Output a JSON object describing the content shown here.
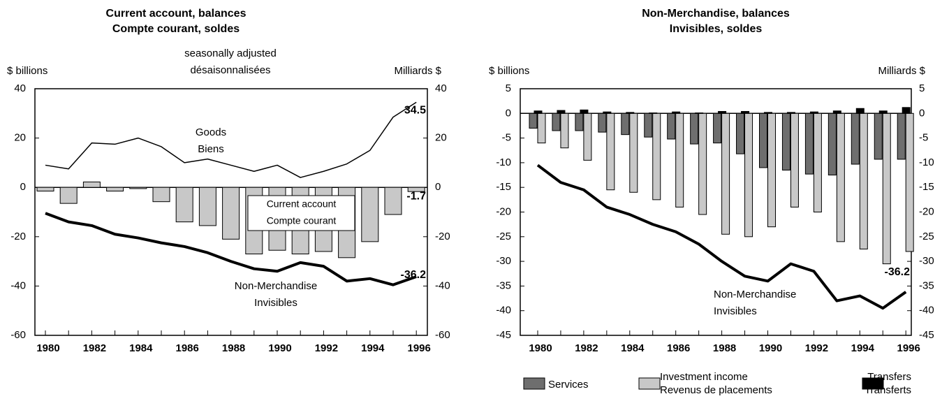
{
  "chart_data": [
    {
      "type": "combo",
      "title": [
        "Current account, balances",
        "Compte courant, soldes"
      ],
      "subtitle": [
        "seasonally adjusted",
        "désaisonnalisées"
      ],
      "y_label_left": "$ billions",
      "y_label_right": "Milliards $",
      "categories": [
        "1980",
        null,
        "1982",
        null,
        "1984",
        null,
        "1986",
        null,
        "1988",
        null,
        "1990",
        null,
        "1992",
        null,
        "1994",
        null,
        "1996"
      ],
      "ylim": [
        -60,
        40
      ],
      "yticks": [
        -60,
        -40,
        -20,
        0,
        20,
        40
      ],
      "series": [
        {
          "name": [
            "Current account",
            "Compte courant"
          ],
          "type": "bar",
          "color": "#c8c8c8",
          "end_label": true,
          "values": [
            -1.5,
            -6.5,
            2.2,
            -1.5,
            -0.5,
            -5.8,
            -14,
            -15.5,
            -21,
            -27,
            -25.5,
            -27,
            -26,
            -28.5,
            -22,
            -11,
            -1.7
          ]
        },
        {
          "name": [
            "Goods",
            "Biens"
          ],
          "type": "line",
          "color": "#000000",
          "width": 1.5,
          "end_label": true,
          "values": [
            9,
            7.5,
            18,
            17.5,
            20,
            16.5,
            10,
            11.5,
            9,
            6.5,
            9,
            4,
            6.5,
            9.5,
            15,
            28.5,
            34.5
          ]
        },
        {
          "name": [
            "Non-Merchandise",
            "Invisibles"
          ],
          "type": "line",
          "color": "#000000",
          "width": 4,
          "end_label": true,
          "values": [
            -10.5,
            -14,
            -15.5,
            -19,
            -20.5,
            -22.5,
            -24,
            -26.5,
            -30,
            -33,
            -34,
            -30.5,
            -32,
            -38,
            -37,
            -39.5,
            -36.2
          ]
        }
      ]
    },
    {
      "type": "combo",
      "title": [
        "Non-Merchandise, balances",
        "Invisibles, soldes"
      ],
      "y_label_left": "$ billions",
      "y_label_right": "Milliards $",
      "categories": [
        "1980",
        null,
        "1982",
        null,
        "1984",
        null,
        "1986",
        null,
        "1988",
        null,
        "1990",
        null,
        "1992",
        null,
        "1994",
        null,
        "1996"
      ],
      "ylim": [
        -45,
        5
      ],
      "yticks": [
        -45,
        -40,
        -35,
        -30,
        -25,
        -20,
        -15,
        -10,
        -5,
        0,
        5
      ],
      "series": [
        {
          "name": [
            "Services"
          ],
          "type": "bar",
          "color": "#6e6e6e",
          "values": [
            -3,
            -3.5,
            -3.5,
            -3.8,
            -4.3,
            -4.8,
            -5.2,
            -6.2,
            -6,
            -8.2,
            -11,
            -11.5,
            -12.3,
            -12.5,
            -10.3,
            -9.3,
            -9.3
          ]
        },
        {
          "name": [
            "Investment income",
            "Revenus de placements"
          ],
          "type": "bar",
          "color": "#c8c8c8",
          "values": [
            -6,
            -7,
            -9.5,
            -15.5,
            -16,
            -17.5,
            -19,
            -20.5,
            -24.5,
            -25,
            -23,
            -19,
            -20,
            -26,
            -27.5,
            -30.5,
            -28
          ]
        },
        {
          "name": [
            "Transfers",
            "Transferts"
          ],
          "type": "bar",
          "color": "#000000",
          "values": [
            0.5,
            0.6,
            0.7,
            0.3,
            0.2,
            0.1,
            0.3,
            0.1,
            0.4,
            0.4,
            0.2,
            0.2,
            0.3,
            0.5,
            1.0,
            0.5,
            1.2
          ]
        },
        {
          "name": [
            "Non-Merchandise",
            "Invisibles"
          ],
          "type": "line",
          "color": "#000000",
          "width": 4,
          "end_label": true,
          "values": [
            -10.5,
            -14,
            -15.5,
            -19,
            -20.5,
            -22.5,
            -24,
            -26.5,
            -30,
            -33,
            -34,
            -30.5,
            -32,
            -38,
            -37,
            -39.5,
            -36.2
          ]
        }
      ]
    }
  ]
}
